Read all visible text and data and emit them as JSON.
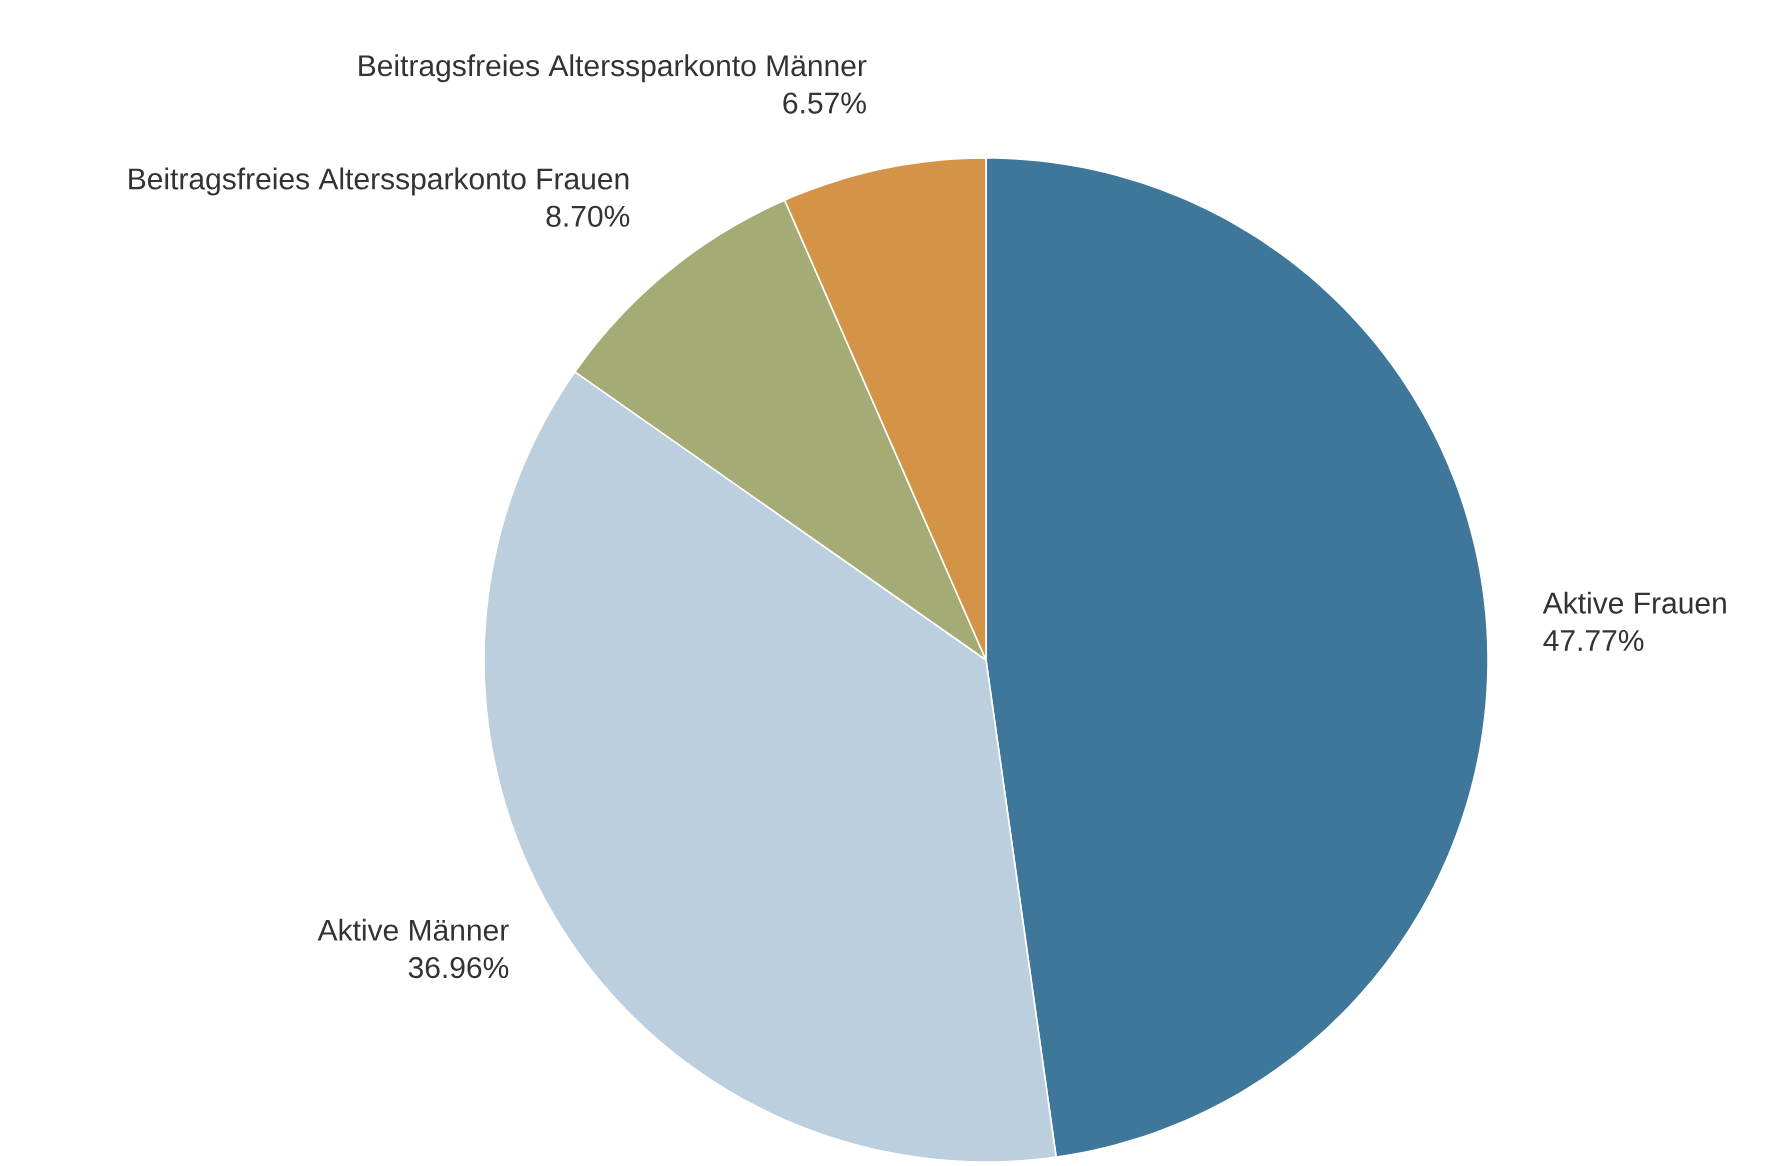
{
  "chart_data": {
    "type": "pie",
    "categories": [
      "Aktive Frauen",
      "Aktive Männer",
      "Beitragsfreies Alterssparkonto Frauen",
      "Beitragsfreies Alterssparkonto Männer"
    ],
    "values": [
      47.77,
      36.96,
      8.7,
      6.57
    ],
    "value_labels": [
      "47.77%",
      "36.96%",
      "8.70%",
      "6.57%"
    ],
    "colors": [
      "#3e7799",
      "#bccfde",
      "#a4ab75",
      "#d39447"
    ]
  }
}
